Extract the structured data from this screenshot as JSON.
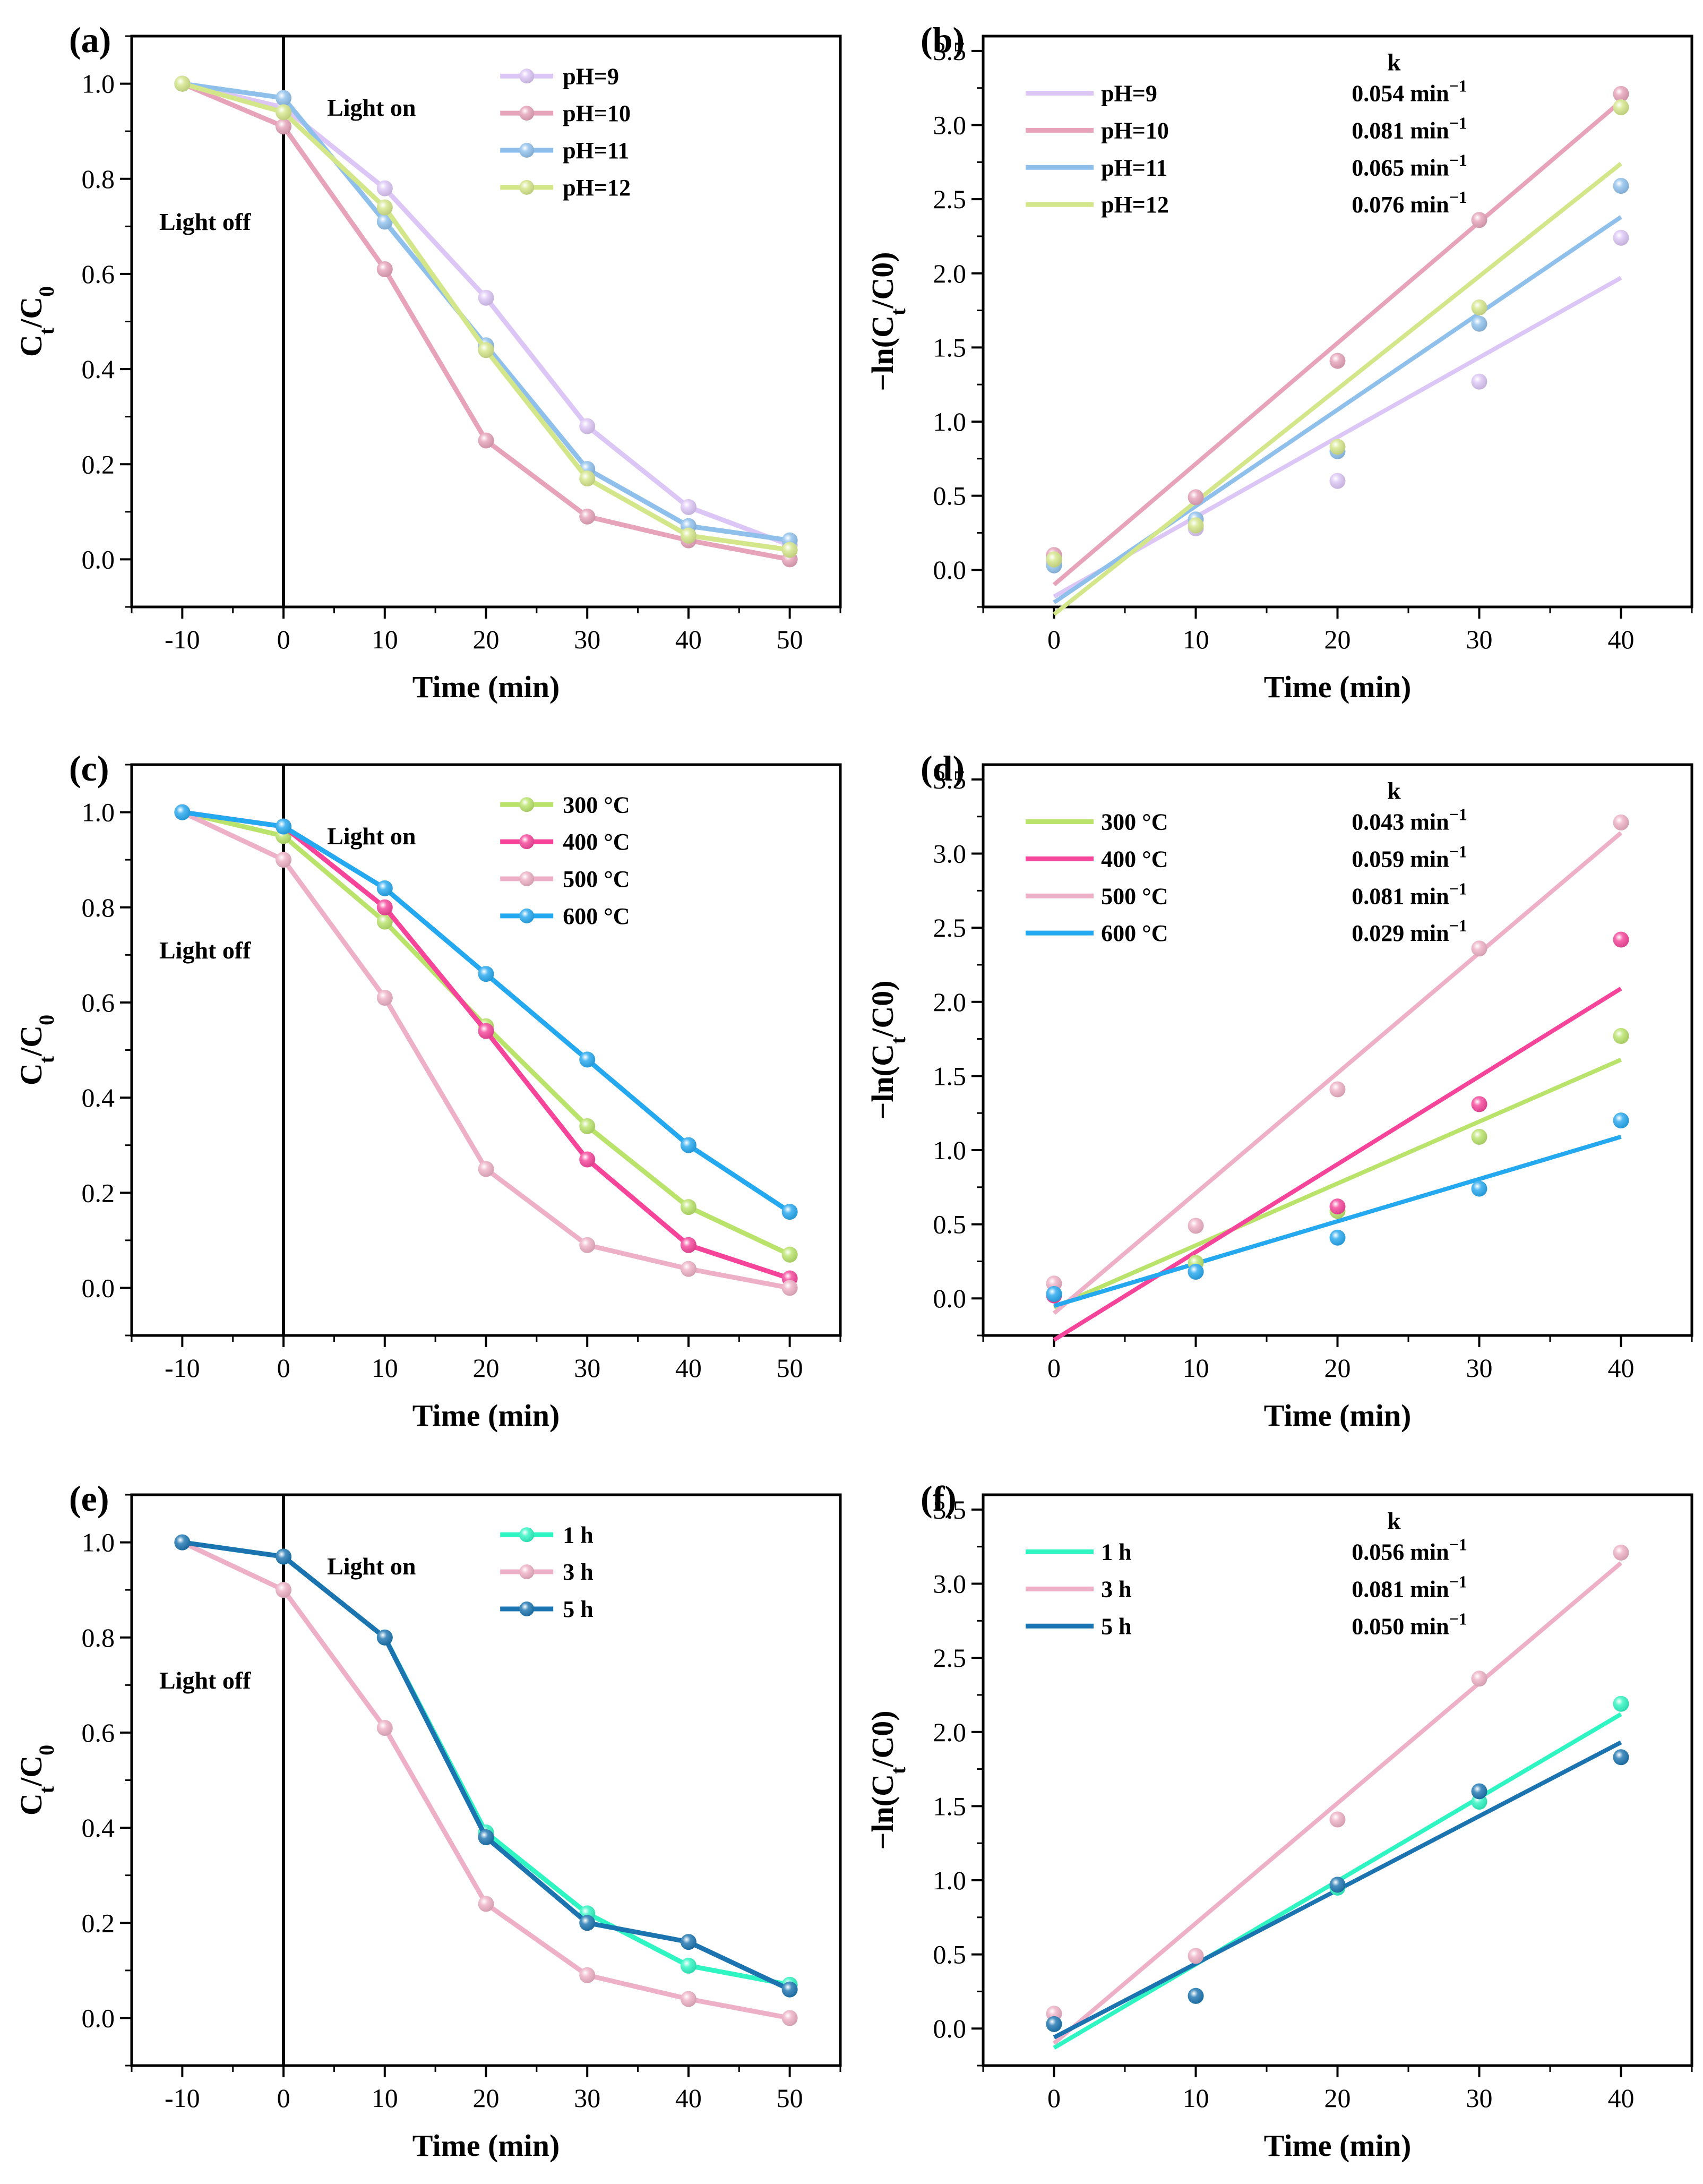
{
  "chart_data": [
    {
      "id": "a",
      "type": "line",
      "kind": "ct",
      "panel_label": "(a)",
      "xlabel": "Time (min)",
      "ylabel_main": "C",
      "ylabel_sub1": "t",
      "ylabel_mid": "/C",
      "ylabel_sub2": "0",
      "xlim": [
        -15,
        55
      ],
      "ylim": [
        -0.1,
        1.1
      ],
      "xticks": [
        -10,
        0,
        10,
        20,
        30,
        40,
        50
      ],
      "yticks": [
        0.0,
        0.2,
        0.4,
        0.6,
        0.8,
        1.0
      ],
      "ytick_labels": [
        "0.0",
        "0.2",
        "0.4",
        "0.6",
        "0.8",
        "1.0"
      ],
      "vline_x": 0,
      "annotations": {
        "light_on": "Light on",
        "light_off": "Light off"
      },
      "x": [
        -10,
        0,
        10,
        20,
        30,
        40,
        50
      ],
      "series": [
        {
          "name": "pH=9",
          "color": "#dcc6f5",
          "values": [
            1.0,
            0.95,
            0.78,
            0.55,
            0.28,
            0.11,
            0.03
          ]
        },
        {
          "name": "pH=10",
          "color": "#e6a3b9",
          "values": [
            1.0,
            0.91,
            0.61,
            0.25,
            0.09,
            0.04,
            0.0
          ]
        },
        {
          "name": "pH=11",
          "color": "#8fc0ec",
          "values": [
            1.0,
            0.97,
            0.71,
            0.45,
            0.19,
            0.07,
            0.04
          ]
        },
        {
          "name": "pH=12",
          "color": "#d4e68a",
          "values": [
            1.0,
            0.94,
            0.74,
            0.44,
            0.17,
            0.05,
            0.02
          ]
        }
      ]
    },
    {
      "id": "b",
      "type": "scatter",
      "kind": "ln",
      "panel_label": "(b)",
      "xlabel": "Time (min)",
      "ylabel_pre": "−ln(C",
      "ylabel_sub1": "t",
      "ylabel_post": "/C0)",
      "xlim": [
        -5,
        45
      ],
      "ylim": [
        -0.25,
        3.6
      ],
      "xticks": [
        0,
        10,
        20,
        30,
        40
      ],
      "yticks": [
        0.0,
        0.5,
        1.0,
        1.5,
        2.0,
        2.5,
        3.0,
        3.5
      ],
      "ytick_labels": [
        "0.0",
        "0.5",
        "1.0",
        "1.5",
        "2.0",
        "2.5",
        "3.0",
        "3.5"
      ],
      "k_header": "k",
      "x": [
        0,
        10,
        20,
        30,
        40
      ],
      "series": [
        {
          "name": "pH=9",
          "k_label": "0.054 min",
          "k_unit": "−1",
          "color": "#dcc6f5",
          "points": [
            0.05,
            0.28,
            0.6,
            1.27,
            2.24
          ],
          "fit": [
            -0.18,
            1.97
          ]
        },
        {
          "name": "pH=10",
          "k_label": "0.081 min",
          "k_unit": "−1",
          "color": "#e6a3b9",
          "points": [
            0.1,
            0.49,
            1.41,
            2.36,
            3.21
          ],
          "fit": [
            -0.1,
            3.16
          ]
        },
        {
          "name": "pH=11",
          "k_label": "0.065 min",
          "k_unit": "−1",
          "color": "#8fc0ec",
          "points": [
            0.03,
            0.34,
            0.8,
            1.66,
            2.59
          ],
          "fit": [
            -0.22,
            2.38
          ]
        },
        {
          "name": "pH=12",
          "k_label": "0.076 min",
          "k_unit": "−1",
          "color": "#d4e68a",
          "points": [
            0.07,
            0.3,
            0.83,
            1.77,
            3.12
          ],
          "fit": [
            -0.3,
            2.74
          ]
        }
      ]
    },
    {
      "id": "c",
      "type": "line",
      "kind": "ct",
      "panel_label": "(c)",
      "xlabel": "Time (min)",
      "ylabel_main": "C",
      "ylabel_sub1": "t",
      "ylabel_mid": "/C",
      "ylabel_sub2": "0",
      "xlim": [
        -15,
        55
      ],
      "ylim": [
        -0.1,
        1.1
      ],
      "xticks": [
        -10,
        0,
        10,
        20,
        30,
        40,
        50
      ],
      "yticks": [
        0.0,
        0.2,
        0.4,
        0.6,
        0.8,
        1.0
      ],
      "ytick_labels": [
        "0.0",
        "0.2",
        "0.4",
        "0.6",
        "0.8",
        "1.0"
      ],
      "vline_x": 0,
      "annotations": {
        "light_on": "Light on",
        "light_off": "Light off"
      },
      "x": [
        -10,
        0,
        10,
        20,
        30,
        40,
        50
      ],
      "series": [
        {
          "name": "300 °C",
          "color": "#b9e36a",
          "values": [
            1.0,
            0.95,
            0.77,
            0.55,
            0.34,
            0.17,
            0.07
          ]
        },
        {
          "name": "400 °C",
          "color": "#f5449a",
          "values": [
            1.0,
            0.97,
            0.8,
            0.54,
            0.27,
            0.09,
            0.02
          ]
        },
        {
          "name": "500 °C",
          "color": "#eeb0c6",
          "values": [
            1.0,
            0.9,
            0.61,
            0.25,
            0.09,
            0.04,
            0.0
          ]
        },
        {
          "name": "600 °C",
          "color": "#24a8ef",
          "values": [
            1.0,
            0.97,
            0.84,
            0.66,
            0.48,
            0.3,
            0.16
          ]
        }
      ]
    },
    {
      "id": "d",
      "type": "scatter",
      "kind": "ln",
      "panel_label": "(d)",
      "xlabel": "Time (min)",
      "ylabel_pre": "−ln(C",
      "ylabel_sub1": "t",
      "ylabel_post": "/C0)",
      "xlim": [
        -5,
        45
      ],
      "ylim": [
        -0.25,
        3.6
      ],
      "xticks": [
        0,
        10,
        20,
        30,
        40
      ],
      "yticks": [
        0.0,
        0.5,
        1.0,
        1.5,
        2.0,
        2.5,
        3.0,
        3.5
      ],
      "ytick_labels": [
        "0.0",
        "0.5",
        "1.0",
        "1.5",
        "2.0",
        "2.5",
        "3.0",
        "3.5"
      ],
      "k_header": "k",
      "x": [
        0,
        10,
        20,
        30,
        40
      ],
      "series": [
        {
          "name": "300 °C",
          "k_label": "0.043 min",
          "k_unit": "−1",
          "color": "#b9e36a",
          "points": [
            0.03,
            0.24,
            0.59,
            1.09,
            1.77
          ],
          "fit": [
            -0.06,
            1.61
          ]
        },
        {
          "name": "400 °C",
          "k_label": "0.059 min",
          "k_unit": "−1",
          "color": "#f5449a",
          "points": [
            0.02,
            0.18,
            0.62,
            1.31,
            2.42
          ],
          "fit": [
            -0.28,
            2.09
          ]
        },
        {
          "name": "500 °C",
          "k_label": "0.081 min",
          "k_unit": "−1",
          "color": "#eeb0c6",
          "points": [
            0.1,
            0.49,
            1.41,
            2.36,
            3.21
          ],
          "fit": [
            -0.1,
            3.14
          ]
        },
        {
          "name": "600 °C",
          "k_label": "0.029 min",
          "k_unit": "−1",
          "color": "#24a8ef",
          "points": [
            0.03,
            0.18,
            0.41,
            0.74,
            1.2
          ],
          "fit": [
            -0.05,
            1.09
          ]
        }
      ]
    },
    {
      "id": "e",
      "type": "line",
      "kind": "ct",
      "panel_label": "(e)",
      "xlabel": "Time (min)",
      "ylabel_main": "C",
      "ylabel_sub1": "t",
      "ylabel_mid": "/C",
      "ylabel_sub2": "0",
      "xlim": [
        -15,
        55
      ],
      "ylim": [
        -0.1,
        1.1
      ],
      "xticks": [
        -10,
        0,
        10,
        20,
        30,
        40,
        50
      ],
      "yticks": [
        0.0,
        0.2,
        0.4,
        0.6,
        0.8,
        1.0
      ],
      "ytick_labels": [
        "0.0",
        "0.2",
        "0.4",
        "0.6",
        "0.8",
        "1.0"
      ],
      "vline_x": 0,
      "annotations": {
        "light_on": "Light on",
        "light_off": "Light off"
      },
      "x": [
        -10,
        0,
        10,
        20,
        30,
        40,
        50
      ],
      "series": [
        {
          "name": "1 h",
          "color": "#2ef5c2",
          "values": [
            1.0,
            0.97,
            0.8,
            0.39,
            0.22,
            0.11,
            0.07
          ]
        },
        {
          "name": "3 h",
          "color": "#eeb0c6",
          "values": [
            1.0,
            0.9,
            0.61,
            0.24,
            0.09,
            0.04,
            0.0
          ]
        },
        {
          "name": "5 h",
          "color": "#1b74b0",
          "values": [
            1.0,
            0.97,
            0.8,
            0.38,
            0.2,
            0.16,
            0.06
          ]
        }
      ]
    },
    {
      "id": "f",
      "type": "scatter",
      "kind": "ln",
      "panel_label": "(f)",
      "xlabel": "Time (min)",
      "ylabel_pre": "−ln(C",
      "ylabel_sub1": "t",
      "ylabel_post": "/C0)",
      "xlim": [
        -5,
        45
      ],
      "ylim": [
        -0.25,
        3.6
      ],
      "xticks": [
        0,
        10,
        20,
        30,
        40
      ],
      "yticks": [
        0.0,
        0.5,
        1.0,
        1.5,
        2.0,
        2.5,
        3.0,
        3.5
      ],
      "ytick_labels": [
        "0.0",
        "0.5",
        "1.0",
        "1.5",
        "2.0",
        "2.5",
        "3.0",
        "3.5"
      ],
      "k_header": "k",
      "x": [
        0,
        10,
        20,
        30,
        40
      ],
      "series": [
        {
          "name": "1 h",
          "k_label": "0.056 min",
          "k_unit": "−1",
          "color": "#2ef5c2",
          "points": [
            0.03,
            0.22,
            0.95,
            1.53,
            2.19
          ],
          "fit": [
            -0.13,
            2.12
          ]
        },
        {
          "name": "3 h",
          "k_label": "0.081 min",
          "k_unit": "−1",
          "color": "#eeb0c6",
          "points": [
            0.1,
            0.49,
            1.41,
            2.36,
            3.21
          ],
          "fit": [
            -0.1,
            3.14
          ]
        },
        {
          "name": "5 h",
          "k_label": "0.050 min",
          "k_unit": "−1",
          "color": "#1b74b0",
          "points": [
            0.03,
            0.22,
            0.97,
            1.6,
            1.83
          ],
          "fit": [
            -0.06,
            1.93
          ]
        }
      ]
    }
  ]
}
